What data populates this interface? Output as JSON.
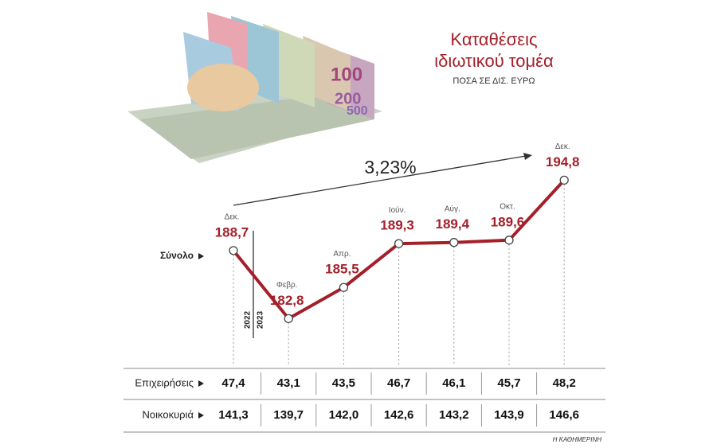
{
  "chart_data": {
    "type": "line",
    "title": "Καταθέσεις ιδιωτικού τομέα",
    "subtitle": "ΠΟΣΑ ΣΕ ΔΙΣ. ΕΥΡΩ",
    "annotation": "3,23%",
    "period_labels": [
      "2022",
      "2023"
    ],
    "categories": [
      "Δεκ.",
      "Φεβρ.",
      "Απρ.",
      "Ιούν.",
      "Αύγ.",
      "Οκτ.",
      "Δεκ."
    ],
    "series": [
      {
        "name": "Σύνολο",
        "color": "#a3202a",
        "values": [
          188.7,
          182.8,
          185.5,
          189.3,
          189.4,
          189.6,
          194.8
        ],
        "value_labels": [
          "188,7",
          "182,8",
          "185,5",
          "189,3",
          "189,4",
          "189,6",
          "194,8"
        ]
      }
    ],
    "ylim": [
      182,
      196
    ],
    "table": {
      "rows": [
        {
          "name": "Επιχειρήσεις",
          "cells": [
            "47,4",
            "43,1",
            "43,5",
            "46,7",
            "46,1",
            "45,7",
            "48,2"
          ]
        },
        {
          "name": "Νοικοκυριά",
          "cells": [
            "141,3",
            "139,7",
            "142,0",
            "142,6",
            "143,2",
            "143,9",
            "146,6"
          ]
        }
      ]
    },
    "source": "Η ΚΑΘΗΜΕΡΙΝΗ"
  }
}
